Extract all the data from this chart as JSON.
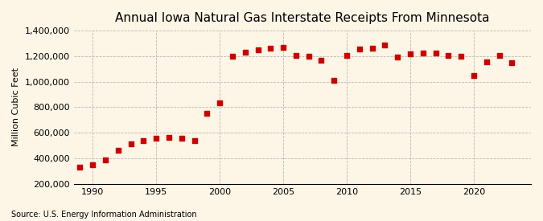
{
  "title": "Annual Iowa Natural Gas Interstate Receipts From Minnesota",
  "ylabel": "Million Cubic Feet",
  "source": "Source: U.S. Energy Information Administration",
  "background_color": "#fdf5e6",
  "marker_color": "#cc0000",
  "grid_color": "#aaaaaa",
  "years": [
    1989,
    1990,
    1991,
    1992,
    1993,
    1994,
    1995,
    1996,
    1997,
    1998,
    1999,
    2000,
    2001,
    2002,
    2003,
    2004,
    2005,
    2006,
    2007,
    2008,
    2009,
    2010,
    2011,
    2012,
    2013,
    2014,
    2015,
    2016,
    2017,
    2018,
    2019,
    2020,
    2021,
    2022,
    2023
  ],
  "values": [
    330000,
    350000,
    385000,
    460000,
    510000,
    540000,
    555000,
    560000,
    555000,
    535000,
    755000,
    835000,
    1200000,
    1230000,
    1250000,
    1265000,
    1270000,
    1205000,
    1200000,
    1165000,
    1010000,
    1205000,
    1255000,
    1260000,
    1285000,
    1190000,
    1215000,
    1225000,
    1225000,
    1205000,
    1200000,
    1045000,
    1155000,
    1205000,
    1150000
  ],
  "ylim": [
    200000,
    1400000
  ],
  "yticks": [
    200000,
    400000,
    600000,
    800000,
    1000000,
    1200000,
    1400000
  ],
  "xticks": [
    1990,
    1995,
    2000,
    2005,
    2010,
    2015,
    2020
  ],
  "xlim": [
    1988.5,
    2024.5
  ]
}
